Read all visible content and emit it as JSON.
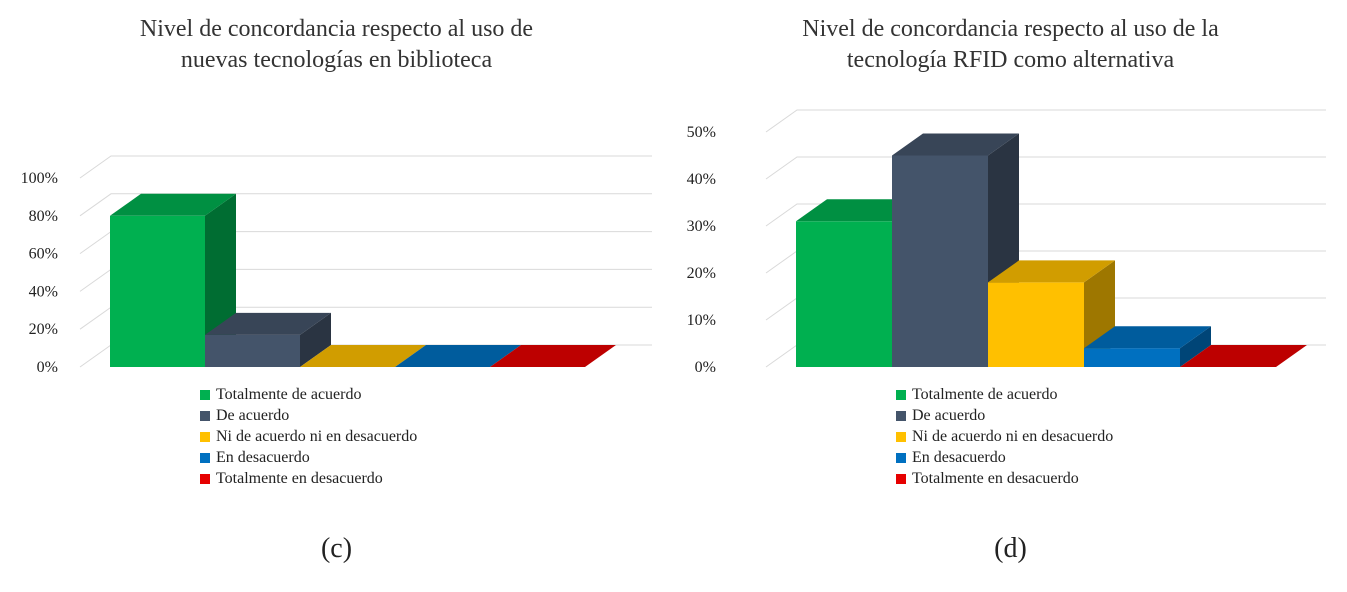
{
  "chart_data": [
    {
      "type": "bar",
      "title_lines": [
        "Nivel de concordancia respecto al uso de",
        "nuevas tecnologías en biblioteca"
      ],
      "categories": [
        "Totalmente de acuerdo",
        "De acuerdo",
        "Ni de acuerdo ni en desacuerdo",
        "En desacuerdo",
        "Totalmente en desacuerdo"
      ],
      "values": [
        80,
        17,
        0,
        0,
        0
      ],
      "colors": [
        "#00B050",
        "#44546A",
        "#FFC000",
        "#0070C0",
        "#E60000"
      ],
      "yticks": [
        "0%",
        "20%",
        "40%",
        "60%",
        "80%",
        "100%"
      ],
      "ylim": [
        0,
        100
      ],
      "legend": [
        "Totalmente de acuerdo",
        "De acuerdo",
        "Ni de acuerdo ni en desacuerdo",
        "En desacuerdo",
        "Totalmente en desacuerdo"
      ],
      "legend_position": "bottom",
      "grid": true,
      "caption": "(c)"
    },
    {
      "type": "bar",
      "title_lines": [
        "Nivel de concordancia respecto al uso de la",
        "tecnología RFID como alternativa"
      ],
      "categories": [
        "Totalmente de acuerdo",
        "De acuerdo",
        "Ni de acuerdo ni en desacuerdo",
        "En desacuerdo",
        "Totalmente en desacuerdo"
      ],
      "values": [
        31,
        45,
        18,
        4,
        0
      ],
      "colors": [
        "#00B050",
        "#44546A",
        "#FFC000",
        "#0070C0",
        "#E60000"
      ],
      "yticks": [
        "0%",
        "10%",
        "20%",
        "30%",
        "40%",
        "50%"
      ],
      "ylim": [
        0,
        50
      ],
      "legend": [
        "Totalmente de acuerdo",
        "De acuerdo",
        "Ni de acuerdo ni en desacuerdo",
        "En desacuerdo",
        "Totalmente en desacuerdo"
      ],
      "legend_position": "bottom",
      "grid": true,
      "caption": "(d)"
    }
  ]
}
